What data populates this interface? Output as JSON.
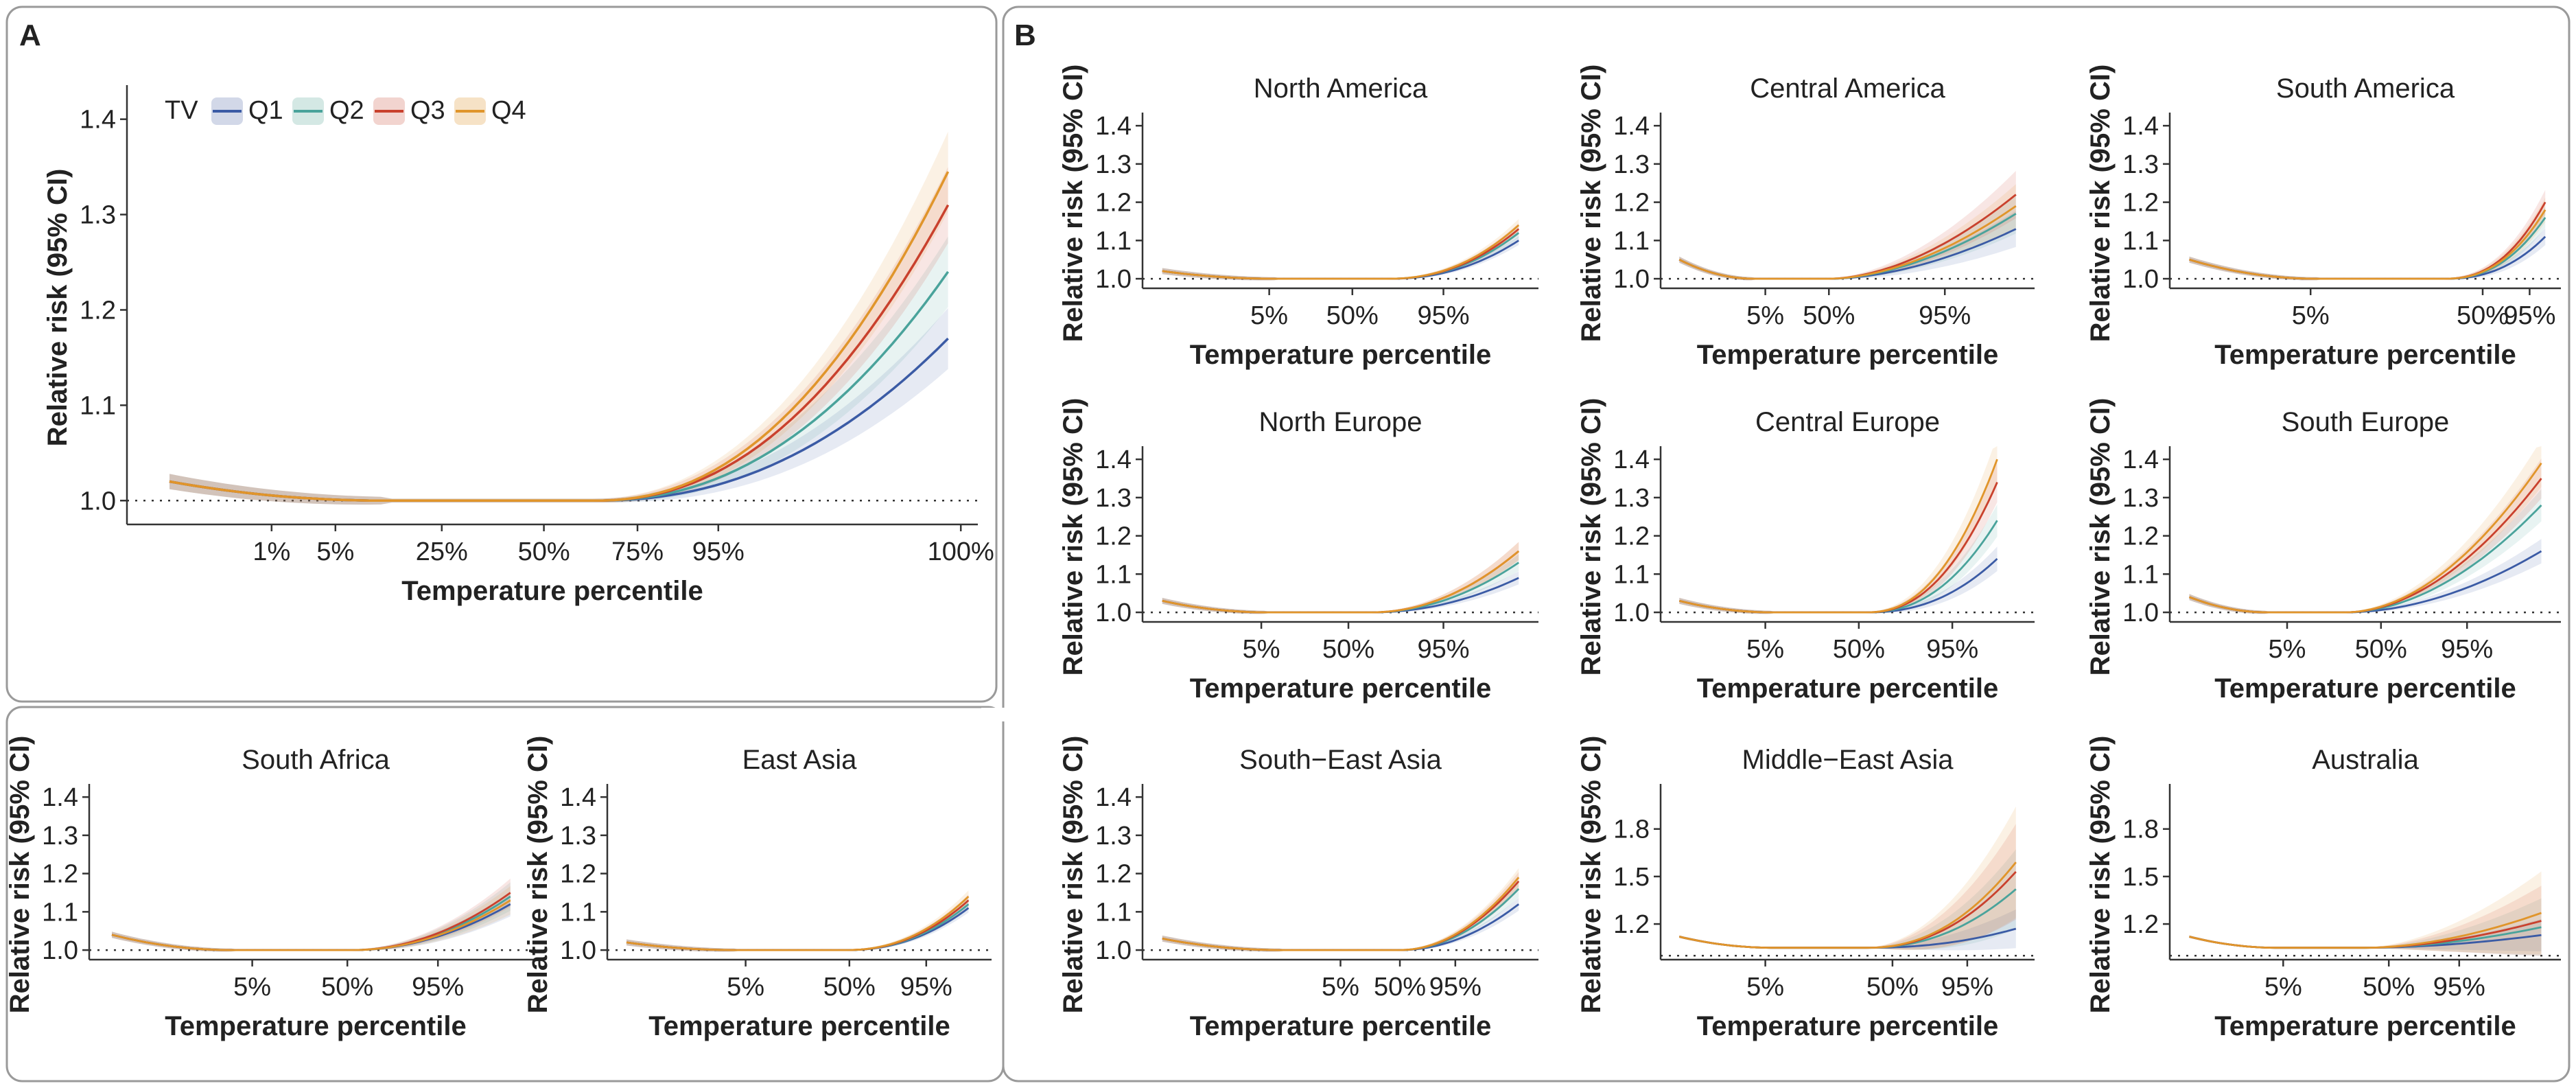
{
  "panel_letters": {
    "A": "A",
    "B": "B"
  },
  "legend": {
    "title": "TV",
    "items": [
      {
        "name": "Q1",
        "color": "#3b5ba5"
      },
      {
        "name": "Q2",
        "color": "#4aa39b"
      },
      {
        "name": "Q3",
        "color": "#c9412d"
      },
      {
        "name": "Q4",
        "color": "#e0952b"
      }
    ]
  },
  "chart_data": [
    {
      "id": "overall",
      "type": "line",
      "title": "",
      "xlabel": "Temperature percentile",
      "ylabel": "Relative risk (95% CI)",
      "ylim": [
        0.975,
        1.43
      ],
      "yticks": [
        "1.0",
        "1.1",
        "1.2",
        "1.3",
        "1.4"
      ],
      "xticks": [
        [
          "1%",
          0.17
        ],
        [
          "5%",
          0.245
        ],
        [
          "25%",
          0.37
        ],
        [
          "50%",
          0.49
        ],
        [
          "75%",
          0.6
        ],
        [
          "95%",
          0.695
        ],
        [
          "100%",
          0.98
        ]
      ],
      "x_start": 0.05,
      "x_end": 0.965,
      "x_flat_end": 0.55,
      "left_rr": 1.02,
      "min_rr": 1.0,
      "end_rr": [
        1.17,
        1.24,
        1.31,
        1.345
      ],
      "ci": [
        0.03,
        0.035,
        0.038,
        0.04
      ],
      "curve_power": 2.2
    },
    {
      "id": "north-america",
      "type": "line",
      "title": "North America",
      "xlabel": "Temperature percentile",
      "ylabel": "Relative risk (95% CI)",
      "ylim": [
        0.975,
        1.42
      ],
      "yticks": [
        "1.0",
        "1.1",
        "1.2",
        "1.3",
        "1.4"
      ],
      "xticks": [
        [
          "5%",
          0.32
        ],
        [
          "50%",
          0.53
        ],
        [
          "95%",
          0.76
        ]
      ],
      "x_start": 0.05,
      "x_end": 0.95,
      "x_flat_end": 0.62,
      "left_rr": 1.02,
      "min_rr": 1.0,
      "end_rr": [
        1.1,
        1.12,
        1.13,
        1.14
      ],
      "ci": [
        0.01,
        0.012,
        0.013,
        0.014
      ],
      "curve_power": 2.2
    },
    {
      "id": "central-america",
      "type": "line",
      "title": "Central America",
      "xlabel": "Temperature percentile",
      "ylabel": "Relative risk (95% CI)",
      "ylim": [
        0.975,
        1.42
      ],
      "yticks": [
        "1.0",
        "1.1",
        "1.2",
        "1.3",
        "1.4"
      ],
      "xticks": [
        [
          "5%",
          0.28
        ],
        [
          "50%",
          0.45
        ],
        [
          "95%",
          0.76
        ]
      ],
      "x_start": 0.05,
      "x_end": 0.95,
      "x_flat_end": 0.45,
      "left_rr": 1.05,
      "min_rr": 1.0,
      "end_rr": [
        1.13,
        1.17,
        1.22,
        1.19
      ],
      "ci": [
        0.045,
        0.05,
        0.06,
        0.055
      ],
      "curve_power": 1.8
    },
    {
      "id": "south-america",
      "type": "line",
      "title": "South America",
      "xlabel": "Temperature percentile",
      "ylabel": "Relative risk (95% CI)",
      "ylim": [
        0.975,
        1.42
      ],
      "yticks": [
        "1.0",
        "1.1",
        "1.2",
        "1.3",
        "1.4"
      ],
      "xticks": [
        [
          "5%",
          0.36
        ],
        [
          "50%",
          0.8
        ],
        [
          "95%",
          0.92
        ]
      ],
      "x_start": 0.05,
      "x_end": 0.96,
      "x_flat_end": 0.7,
      "left_rr": 1.05,
      "min_rr": 1.0,
      "end_rr": [
        1.11,
        1.16,
        1.2,
        1.18
      ],
      "ci": [
        0.02,
        0.025,
        0.03,
        0.03
      ],
      "curve_power": 2.4
    },
    {
      "id": "north-europe",
      "type": "line",
      "title": "North Europe",
      "xlabel": "Temperature percentile",
      "ylabel": "Relative risk (95% CI)",
      "ylim": [
        0.975,
        1.42
      ],
      "yticks": [
        "1.0",
        "1.1",
        "1.2",
        "1.3",
        "1.4"
      ],
      "xticks": [
        [
          "5%",
          0.3
        ],
        [
          "50%",
          0.52
        ],
        [
          "95%",
          0.76
        ]
      ],
      "x_start": 0.05,
      "x_end": 0.95,
      "x_flat_end": 0.58,
      "left_rr": 1.03,
      "min_rr": 1.0,
      "end_rr": [
        1.09,
        1.13,
        1.16,
        1.16
      ],
      "ci": [
        0.015,
        0.02,
        0.022,
        0.022
      ],
      "curve_power": 2.0
    },
    {
      "id": "central-europe",
      "type": "line",
      "title": "Central Europe",
      "xlabel": "Temperature percentile",
      "ylabel": "Relative risk (95% CI)",
      "ylim": [
        0.975,
        1.42
      ],
      "yticks": [
        "1.0",
        "1.1",
        "1.2",
        "1.3",
        "1.4"
      ],
      "xticks": [
        [
          "5%",
          0.28
        ],
        [
          "50%",
          0.53
        ],
        [
          "95%",
          0.78
        ]
      ],
      "x_start": 0.05,
      "x_end": 0.9,
      "x_flat_end": 0.55,
      "left_rr": 1.03,
      "min_rr": 1.0,
      "end_rr": [
        1.14,
        1.24,
        1.34,
        1.4
      ],
      "ci": [
        0.03,
        0.04,
        0.05,
        0.06
      ],
      "curve_power": 2.3
    },
    {
      "id": "south-europe",
      "type": "line",
      "title": "South Europe",
      "xlabel": "Temperature percentile",
      "ylabel": "Relative risk (95% CI)",
      "ylim": [
        0.975,
        1.42
      ],
      "yticks": [
        "1.0",
        "1.1",
        "1.2",
        "1.3",
        "1.4"
      ],
      "xticks": [
        [
          "5%",
          0.3
        ],
        [
          "50%",
          0.54
        ],
        [
          "95%",
          0.76
        ]
      ],
      "x_start": 0.05,
      "x_end": 0.95,
      "x_flat_end": 0.45,
      "left_rr": 1.04,
      "min_rr": 1.0,
      "end_rr": [
        1.16,
        1.28,
        1.35,
        1.39
      ],
      "ci": [
        0.03,
        0.04,
        0.05,
        0.06
      ],
      "curve_power": 1.9
    },
    {
      "id": "south-africa",
      "type": "line",
      "title": "South Africa",
      "xlabel": "Temperature percentile",
      "ylabel": "Relative risk (95% CI)",
      "ylim": [
        0.975,
        1.42
      ],
      "yticks": [
        "1.0",
        "1.1",
        "1.2",
        "1.3",
        "1.4"
      ],
      "xticks": [
        [
          "5%",
          0.36
        ],
        [
          "50%",
          0.57
        ],
        [
          "95%",
          0.77
        ]
      ],
      "x_start": 0.05,
      "x_end": 0.93,
      "x_flat_end": 0.58,
      "left_rr": 1.04,
      "min_rr": 1.0,
      "end_rr": [
        1.12,
        1.14,
        1.15,
        1.13
      ],
      "ci": [
        0.03,
        0.035,
        0.035,
        0.035
      ],
      "curve_power": 2.0
    },
    {
      "id": "east-asia",
      "type": "line",
      "title": "East Asia",
      "xlabel": "Temperature percentile",
      "ylabel": "Relative risk (95% CI)",
      "ylim": [
        0.975,
        1.42
      ],
      "yticks": [
        "1.0",
        "1.1",
        "1.2",
        "1.3",
        "1.4"
      ],
      "xticks": [
        [
          "5%",
          0.36
        ],
        [
          "50%",
          0.63
        ],
        [
          "95%",
          0.83
        ]
      ],
      "x_start": 0.05,
      "x_end": 0.94,
      "x_flat_end": 0.62,
      "left_rr": 1.02,
      "min_rr": 1.0,
      "end_rr": [
        1.11,
        1.12,
        1.13,
        1.14
      ],
      "ci": [
        0.01,
        0.012,
        0.013,
        0.014
      ],
      "curve_power": 2.2
    },
    {
      "id": "south-east-asia",
      "type": "line",
      "title": "South−East Asia",
      "xlabel": "Temperature percentile",
      "ylabel": "Relative risk (95% CI)",
      "ylim": [
        0.975,
        1.42
      ],
      "yticks": [
        "1.0",
        "1.1",
        "1.2",
        "1.3",
        "1.4"
      ],
      "xticks": [
        [
          "5%",
          0.5
        ],
        [
          "50%",
          0.65
        ],
        [
          "95%",
          0.79
        ]
      ],
      "x_start": 0.05,
      "x_end": 0.95,
      "x_flat_end": 0.65,
      "left_rr": 1.03,
      "min_rr": 1.0,
      "end_rr": [
        1.12,
        1.16,
        1.18,
        1.19
      ],
      "ci": [
        0.015,
        0.02,
        0.022,
        0.022
      ],
      "curve_power": 2.0
    },
    {
      "id": "middle-east-asia",
      "type": "line",
      "title": "Middle−East Asia",
      "xlabel": "Temperature percentile",
      "ylabel": "Relative risk (95% CI)",
      "ylim": [
        0.975,
        2.05
      ],
      "yticks": [
        "1.2",
        "1.5",
        "1.8"
      ],
      "xticks": [
        [
          "5%",
          0.28
        ],
        [
          "50%",
          0.62
        ],
        [
          "95%",
          0.82
        ]
      ],
      "x_start": 0.05,
      "x_end": 0.95,
      "x_flat_end": 0.55,
      "left_rr": 1.12,
      "min_rr": 1.05,
      "end_rr": [
        1.17,
        1.42,
        1.53,
        1.59
      ],
      "ci": [
        0.12,
        0.25,
        0.3,
        0.35
      ],
      "curve_power": 2.2
    },
    {
      "id": "australia",
      "type": "line",
      "title": "Australia",
      "xlabel": "Temperature percentile",
      "ylabel": "Relative risk (95% CI)",
      "ylim": [
        0.975,
        2.05
      ],
      "yticks": [
        "1.2",
        "1.5",
        "1.8"
      ],
      "xticks": [
        [
          "5%",
          0.29
        ],
        [
          "50%",
          0.56
        ],
        [
          "95%",
          0.74
        ]
      ],
      "x_start": 0.05,
      "x_end": 0.95,
      "x_flat_end": 0.5,
      "left_rr": 1.12,
      "min_rr": 1.05,
      "end_rr": [
        1.13,
        1.18,
        1.22,
        1.27
      ],
      "ci": [
        0.1,
        0.18,
        0.22,
        0.26
      ],
      "curve_power": 1.8
    }
  ]
}
